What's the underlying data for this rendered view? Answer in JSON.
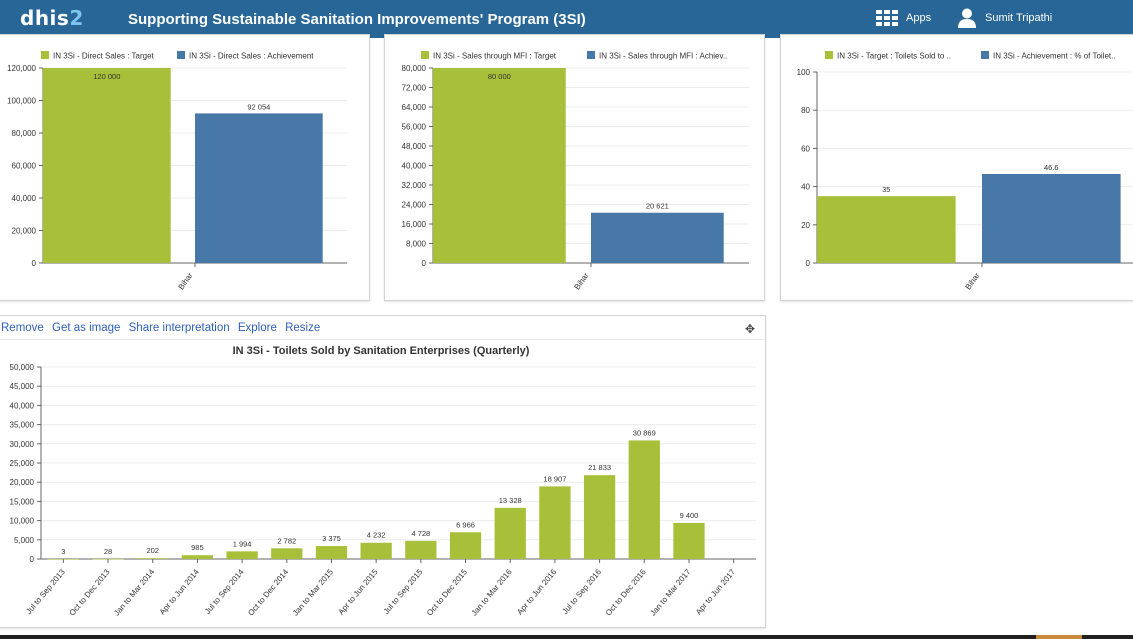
{
  "header": {
    "logo_main": "dhis",
    "logo_num": "2",
    "title": "Supporting Sustainable Sanitation Improvements' Program (3SI)",
    "apps_label": "Apps",
    "user_name": "Sumit Tripathi"
  },
  "panel4": {
    "actions": {
      "remove": "Remove",
      "get_image": "Get as image",
      "share": "Share interpretation",
      "explore": "Explore",
      "resize": "Resize"
    },
    "move_icon": "move-icon"
  },
  "colors": {
    "green": "#a8bf3a",
    "blue": "#4778a8",
    "header": "#276696"
  },
  "chart_data": [
    {
      "type": "bar",
      "legend": [
        "IN 3Si - Direct Sales : Target",
        "IN 3Si - Direct Sales : Achievement"
      ],
      "categories": [
        "Bihar"
      ],
      "series": [
        {
          "name": "IN 3Si - Direct Sales : Target",
          "values": [
            120000
          ],
          "labels": [
            "120 000"
          ]
        },
        {
          "name": "IN 3Si - Direct Sales : Achievement",
          "values": [
            92054
          ],
          "labels": [
            "92 054"
          ]
        }
      ],
      "yticks": [
        "0",
        "20,000",
        "40,000",
        "60,000",
        "80,000",
        "100,000",
        "120,000"
      ],
      "ylim": [
        0,
        120000
      ]
    },
    {
      "type": "bar",
      "legend": [
        "IN 3Si - Sales through MFI : Target",
        "IN 3Si - Sales through MFI : Achiev.."
      ],
      "categories": [
        "Bihar"
      ],
      "series": [
        {
          "name": "IN 3Si - Sales through MFI : Target",
          "values": [
            80000
          ],
          "labels": [
            "80 000"
          ]
        },
        {
          "name": "IN 3Si - Sales through MFI : Achiev..",
          "values": [
            20621
          ],
          "labels": [
            "20 621"
          ]
        }
      ],
      "yticks": [
        "0",
        "8,000",
        "16,000",
        "24,000",
        "32,000",
        "40,000",
        "48,000",
        "56,000",
        "64,000",
        "72,000",
        "80,000"
      ],
      "ylim": [
        0,
        80000
      ]
    },
    {
      "type": "bar",
      "legend": [
        "IN 3Si - Target : Toilets Sold to ..",
        "IN 3Si - Achievement : % of Toilet.."
      ],
      "categories": [
        "Bihar"
      ],
      "series": [
        {
          "name": "IN 3Si - Target : Toilets Sold to ..",
          "values": [
            35
          ],
          "labels": [
            "35"
          ]
        },
        {
          "name": "IN 3Si - Achievement : % of Toilet..",
          "values": [
            46.6
          ],
          "labels": [
            "46.6"
          ]
        }
      ],
      "yticks": [
        "0",
        "20",
        "40",
        "60",
        "80",
        "100"
      ],
      "ylim": [
        0,
        100
      ]
    },
    {
      "type": "bar",
      "title": "IN 3Si - Toilets Sold by Sanitation Enterprises (Quarterly)",
      "categories": [
        "Jul to Sep 2013",
        "Oct to Dec 2013",
        "Jan to Mar 2014",
        "Apr to Jun 2014",
        "Jul to Sep 2014",
        "Oct to Dec 2014",
        "Jan to Mar 2015",
        "Apr to Jun 2015",
        "Jul to Sep 2015",
        "Oct to Dec 2015",
        "Jan to Mar 2016",
        "Apr to Jun 2016",
        "Jul to Sep 2016",
        "Oct to Dec 2016",
        "Jan to Mar 2017",
        "Apr to Jun 2017"
      ],
      "values": [
        3,
        28,
        202,
        985,
        1994,
        2782,
        3375,
        4232,
        4728,
        6966,
        13328,
        18907,
        21833,
        30869,
        9400,
        0
      ],
      "labels": [
        "3",
        "28",
        "202",
        "985",
        "1 994",
        "2 782",
        "3 375",
        "4 232",
        "4 728",
        "6 966",
        "13 328",
        "18 907",
        "21 833",
        "30 869",
        "9 400",
        ""
      ],
      "yticks": [
        "0",
        "5,000",
        "10,000",
        "15,000",
        "20,000",
        "25,000",
        "30,000",
        "35,000",
        "40,000",
        "45,000",
        "50,000"
      ],
      "ylim": [
        0,
        50000
      ]
    }
  ]
}
